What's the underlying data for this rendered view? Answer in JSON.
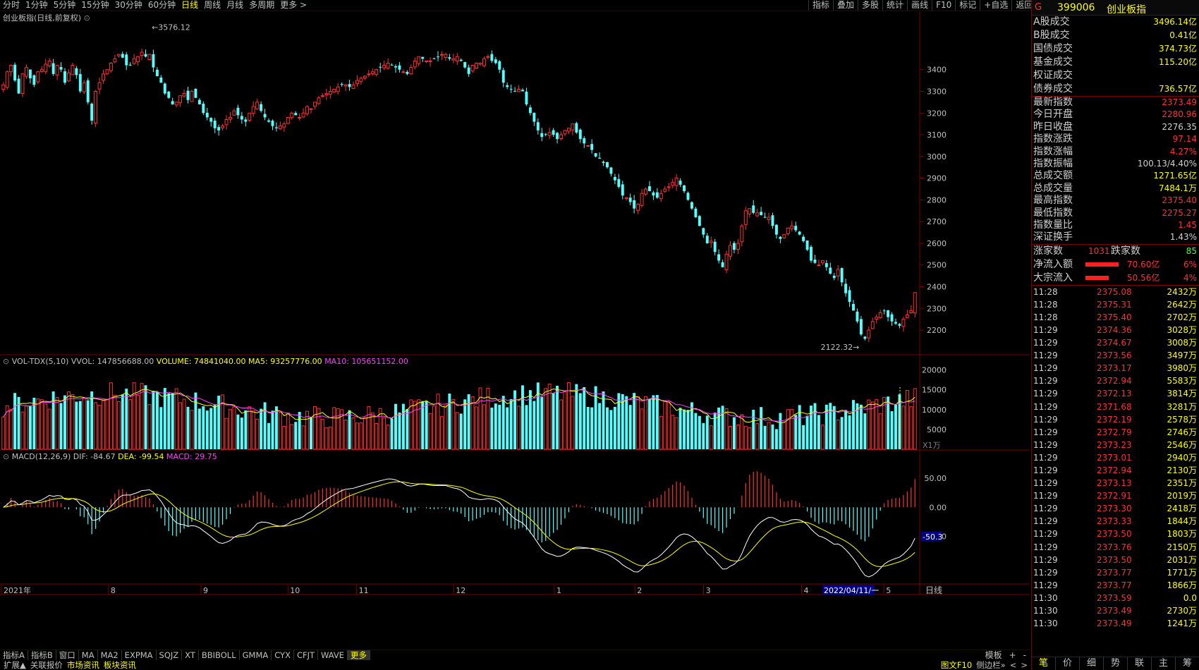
{
  "toolbar": {
    "periods": [
      "分时",
      "1分钟",
      "5分钟",
      "15分钟",
      "30分钟",
      "60分钟",
      "日线",
      "周线",
      "月线",
      "多周期",
      "更多 >"
    ],
    "active_period": "日线",
    "tools": [
      "指标",
      "叠加",
      "多股",
      "统计",
      "画线",
      "F10",
      "标记",
      "+自选",
      "返回"
    ]
  },
  "kline_panel": {
    "title": "创业板指(日线,前复权)",
    "high_label": "3576.12",
    "low_label": "2122.32",
    "y_ticks": [
      "3400",
      "3300",
      "3200",
      "3100",
      "3000",
      "2900",
      "2800",
      "2700",
      "2600",
      "2500",
      "2400",
      "2300",
      "2200"
    ]
  },
  "volume_panel": {
    "name": "VOL-TDX(5,10)",
    "vvol": "VVOL: 147856688.00",
    "volume": "VOLUME: 74841040.00",
    "ma5": "MA5: 93257776.00",
    "ma10": "MA10: 105651152.00",
    "y_ticks": [
      "20000",
      "15000",
      "10000",
      "5000"
    ],
    "unit": "X1万"
  },
  "macd_panel": {
    "name": "MACD(12,26,9)",
    "dif": "DIF: -84.67",
    "dea": "DEA: -99.54",
    "macd": "MACD: 29.75",
    "y_ticks": [
      "50.00",
      "0.00",
      "-50.00"
    ],
    "marker": "-50.3"
  },
  "date_axis": {
    "labels": [
      "2021年",
      "8",
      "9",
      "10",
      "11",
      "12",
      "1",
      "2",
      "3",
      "4",
      "5"
    ],
    "cursor": "2022/04/11/一",
    "period": "日线"
  },
  "quote": {
    "flag": "G",
    "code": "399006",
    "name": "创业板指",
    "market": [
      {
        "k": "A股成交",
        "v": "3496.14亿",
        "c": "#ffff00"
      },
      {
        "k": "B股成交",
        "v": "0.41亿",
        "c": "#ffff00"
      },
      {
        "k": "国债成交",
        "v": "374.73亿",
        "c": "#ffff00"
      },
      {
        "k": "基金成交",
        "v": "115.20亿",
        "c": "#ffff00"
      },
      {
        "k": "权证成交",
        "v": "",
        "c": "#ffff00"
      },
      {
        "k": "债券成交",
        "v": "736.57亿",
        "c": "#ffff00"
      }
    ],
    "stats": [
      {
        "k": "最新指数",
        "v": "2373.49",
        "c": "#ff3030"
      },
      {
        "k": "今日开盘",
        "v": "2280.96",
        "c": "#ff3030"
      },
      {
        "k": "昨日收盘",
        "v": "2276.35",
        "c": "#d0d0d0"
      },
      {
        "k": "指数涨跌",
        "v": "97.14",
        "c": "#ff3030"
      },
      {
        "k": "指数涨幅",
        "v": "4.27%",
        "c": "#ff3030"
      },
      {
        "k": "指数振幅",
        "v": "100.13/4.40%",
        "c": "#d0d0d0"
      },
      {
        "k": "总成交额",
        "v": "1271.65亿",
        "c": "#ffff00"
      },
      {
        "k": "总成交量",
        "v": "7484.1万",
        "c": "#ffff00"
      },
      {
        "k": "最高指数",
        "v": "2375.40",
        "c": "#ff3030"
      },
      {
        "k": "最低指数",
        "v": "2275.27",
        "c": "#ff3030"
      },
      {
        "k": "指数量比",
        "v": "1.45",
        "c": "#ff3030"
      },
      {
        "k": "深证换手",
        "v": "1.43%",
        "c": "#d0d0d0"
      }
    ],
    "breadth": {
      "up_label": "涨家数",
      "up": "1031",
      "down_label": "跌家数",
      "down": "85"
    },
    "flows": [
      {
        "k": "净流入额",
        "v": "70.60亿",
        "pct": "6%",
        "bar": 0.85
      },
      {
        "k": "大宗流入",
        "v": "50.56亿",
        "pct": "4%",
        "bar": 0.6
      }
    ]
  },
  "ticks": [
    {
      "t": "11:28",
      "p": "2375.08",
      "v": "2432万"
    },
    {
      "t": "11:28",
      "p": "2375.31",
      "v": "2642万"
    },
    {
      "t": "11:28",
      "p": "2375.40",
      "v": "2702万"
    },
    {
      "t": "11:29",
      "p": "2374.36",
      "v": "3028万"
    },
    {
      "t": "11:29",
      "p": "2374.67",
      "v": "3008万"
    },
    {
      "t": "11:29",
      "p": "2373.56",
      "v": "3497万"
    },
    {
      "t": "11:29",
      "p": "2373.17",
      "v": "3980万"
    },
    {
      "t": "11:29",
      "p": "2372.94",
      "v": "5583万"
    },
    {
      "t": "11:29",
      "p": "2372.13",
      "v": "3814万"
    },
    {
      "t": "11:29",
      "p": "2371.68",
      "v": "3281万"
    },
    {
      "t": "11:29",
      "p": "2372.19",
      "v": "2578万"
    },
    {
      "t": "11:29",
      "p": "2372.79",
      "v": "2746万"
    },
    {
      "t": "11:29",
      "p": "2373.23",
      "v": "2546万"
    },
    {
      "t": "11:29",
      "p": "2373.01",
      "v": "2940万"
    },
    {
      "t": "11:29",
      "p": "2372.94",
      "v": "2130万"
    },
    {
      "t": "11:29",
      "p": "2373.13",
      "v": "2351万"
    },
    {
      "t": "11:29",
      "p": "2372.91",
      "v": "2019万"
    },
    {
      "t": "11:29",
      "p": "2373.30",
      "v": "2418万"
    },
    {
      "t": "11:29",
      "p": "2373.33",
      "v": "1844万"
    },
    {
      "t": "11:29",
      "p": "2373.50",
      "v": "1803万"
    },
    {
      "t": "11:29",
      "p": "2373.76",
      "v": "2150万"
    },
    {
      "t": "11:29",
      "p": "2373.50",
      "v": "2031万"
    },
    {
      "t": "11:29",
      "p": "2373.77",
      "v": "1771万"
    },
    {
      "t": "11:29",
      "p": "2373.77",
      "v": "1866万"
    },
    {
      "t": "11:30",
      "p": "2373.59",
      "v": "0.0"
    },
    {
      "t": "11:30",
      "p": "2373.49",
      "v": "2730万"
    },
    {
      "t": "11:30",
      "p": "2373.49",
      "v": "1241万"
    }
  ],
  "right_tabs": [
    "笔",
    "价",
    "细",
    "势",
    "联",
    "主",
    "筹"
  ],
  "indicator_bar": {
    "items": [
      "指标A",
      "指标B",
      "窗口",
      "MA",
      "MA2",
      "EXPMA",
      "SQJZ",
      "XT",
      "BBIBOLL",
      "GMMA",
      "CYX",
      "CFJT",
      "WAVE",
      "更多"
    ],
    "right": [
      "模板",
      "+",
      "-"
    ]
  },
  "status_bar": {
    "left": [
      "扩展▲",
      "关联报价",
      "市场资讯",
      "板块资讯"
    ],
    "right": [
      "图文F10",
      "侧边栏»",
      "<",
      ">"
    ]
  },
  "chart_data": {
    "type": "candlestick",
    "title": "创业板指(日线,前复权)",
    "price_axis": [
      2100,
      3600
    ],
    "series_note": "",
    "closes": [
      3330,
      3390,
      3420,
      3350,
      3290,
      3380,
      3410,
      3360,
      3330,
      3390,
      3400,
      3425,
      3440,
      3380,
      3420,
      3400,
      3340,
      3385,
      3420,
      3375,
      3300,
      3340,
      3250,
      3165,
      3300,
      3340,
      3380,
      3400,
      3430,
      3450,
      3470,
      3455,
      3420,
      3420,
      3450,
      3460,
      3480,
      3460,
      3470,
      3410,
      3370,
      3340,
      3290,
      3270,
      3240,
      3250,
      3280,
      3290,
      3260,
      3300,
      3270,
      3240,
      3200,
      3180,
      3160,
      3130,
      3120,
      3140,
      3170,
      3180,
      3210,
      3190,
      3170,
      3160,
      3200,
      3230,
      3250,
      3210,
      3180,
      3160,
      3140,
      3130,
      3140,
      3150,
      3180,
      3200,
      3190,
      3180,
      3200,
      3230,
      3220,
      3250,
      3270,
      3280,
      3290,
      3300,
      3310,
      3320,
      3330,
      3330,
      3320,
      3330,
      3350,
      3360,
      3370,
      3380,
      3390,
      3400,
      3410,
      3420,
      3430,
      3420,
      3410,
      3400,
      3390,
      3380,
      3410,
      3440,
      3460,
      3450,
      3440,
      3440,
      3450,
      3460,
      3470,
      3470,
      3450,
      3450,
      3460,
      3440,
      3410,
      3380,
      3420,
      3430,
      3430,
      3450,
      3460,
      3440,
      3430,
      3400,
      3340,
      3320,
      3310,
      3300,
      3310,
      3300,
      3240,
      3200,
      3160,
      3120,
      3090,
      3100,
      3110,
      3100,
      3080,
      3100,
      3120,
      3130,
      3150,
      3110,
      3080,
      3060,
      3050,
      3030,
      3000,
      2990,
      2970,
      2950,
      2920,
      2890,
      2860,
      2820,
      2810,
      2790,
      2760,
      2780,
      2830,
      2850,
      2840,
      2820,
      2810,
      2830,
      2850,
      2860,
      2880,
      2900,
      2870,
      2840,
      2800,
      2760,
      2720,
      2680,
      2640,
      2600,
      2610,
      2560,
      2520,
      2490,
      2550,
      2590,
      2570,
      2600,
      2680,
      2750,
      2760,
      2740,
      2740,
      2730,
      2720,
      2720,
      2680,
      2640,
      2620,
      2640,
      2670,
      2680,
      2660,
      2640,
      2610,
      2570,
      2520,
      2510,
      2500,
      2520,
      2490,
      2460,
      2440,
      2480,
      2420,
      2370,
      2330,
      2290,
      2240,
      2180,
      2160,
      2200,
      2240,
      2260,
      2280,
      2290,
      2260,
      2240,
      2230,
      2220,
      2250,
      2270,
      2290,
      2373
    ]
  }
}
